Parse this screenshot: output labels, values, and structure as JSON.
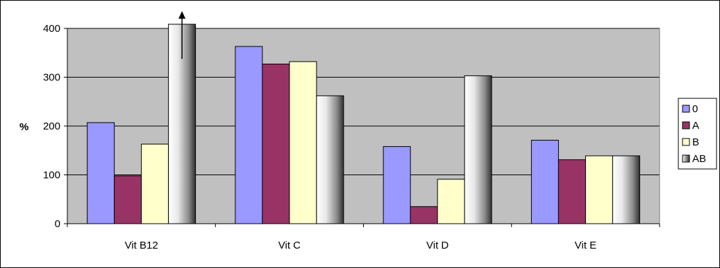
{
  "chart_data": {
    "type": "bar",
    "categories": [
      "Vit B12",
      "Vit C",
      "Vit D",
      "Vit E"
    ],
    "series": [
      {
        "name": "0",
        "values": [
          207,
          363,
          158,
          171
        ]
      },
      {
        "name": "A",
        "values": [
          98,
          327,
          35,
          131
        ]
      },
      {
        "name": "B",
        "values": [
          163,
          332,
          91,
          139
        ]
      },
      {
        "name": "AB",
        "values": [
          400,
          262,
          303,
          139
        ]
      }
    ],
    "clipped": [
      {
        "series": "AB",
        "category": "Vit B12",
        "note": "exceeds axis max, arrow indicates off-scale"
      }
    ],
    "ylabel": "%",
    "ylim": [
      0,
      400
    ],
    "yticks": [
      0,
      100,
      200,
      300,
      400
    ],
    "grid": true,
    "legend_position": "right",
    "colors": {
      "0": "#9999ff",
      "A": "#993366",
      "B": "#ffffcc",
      "AB": "gradient-white-to-gray",
      "plot_background": "#c0c0c0"
    }
  }
}
